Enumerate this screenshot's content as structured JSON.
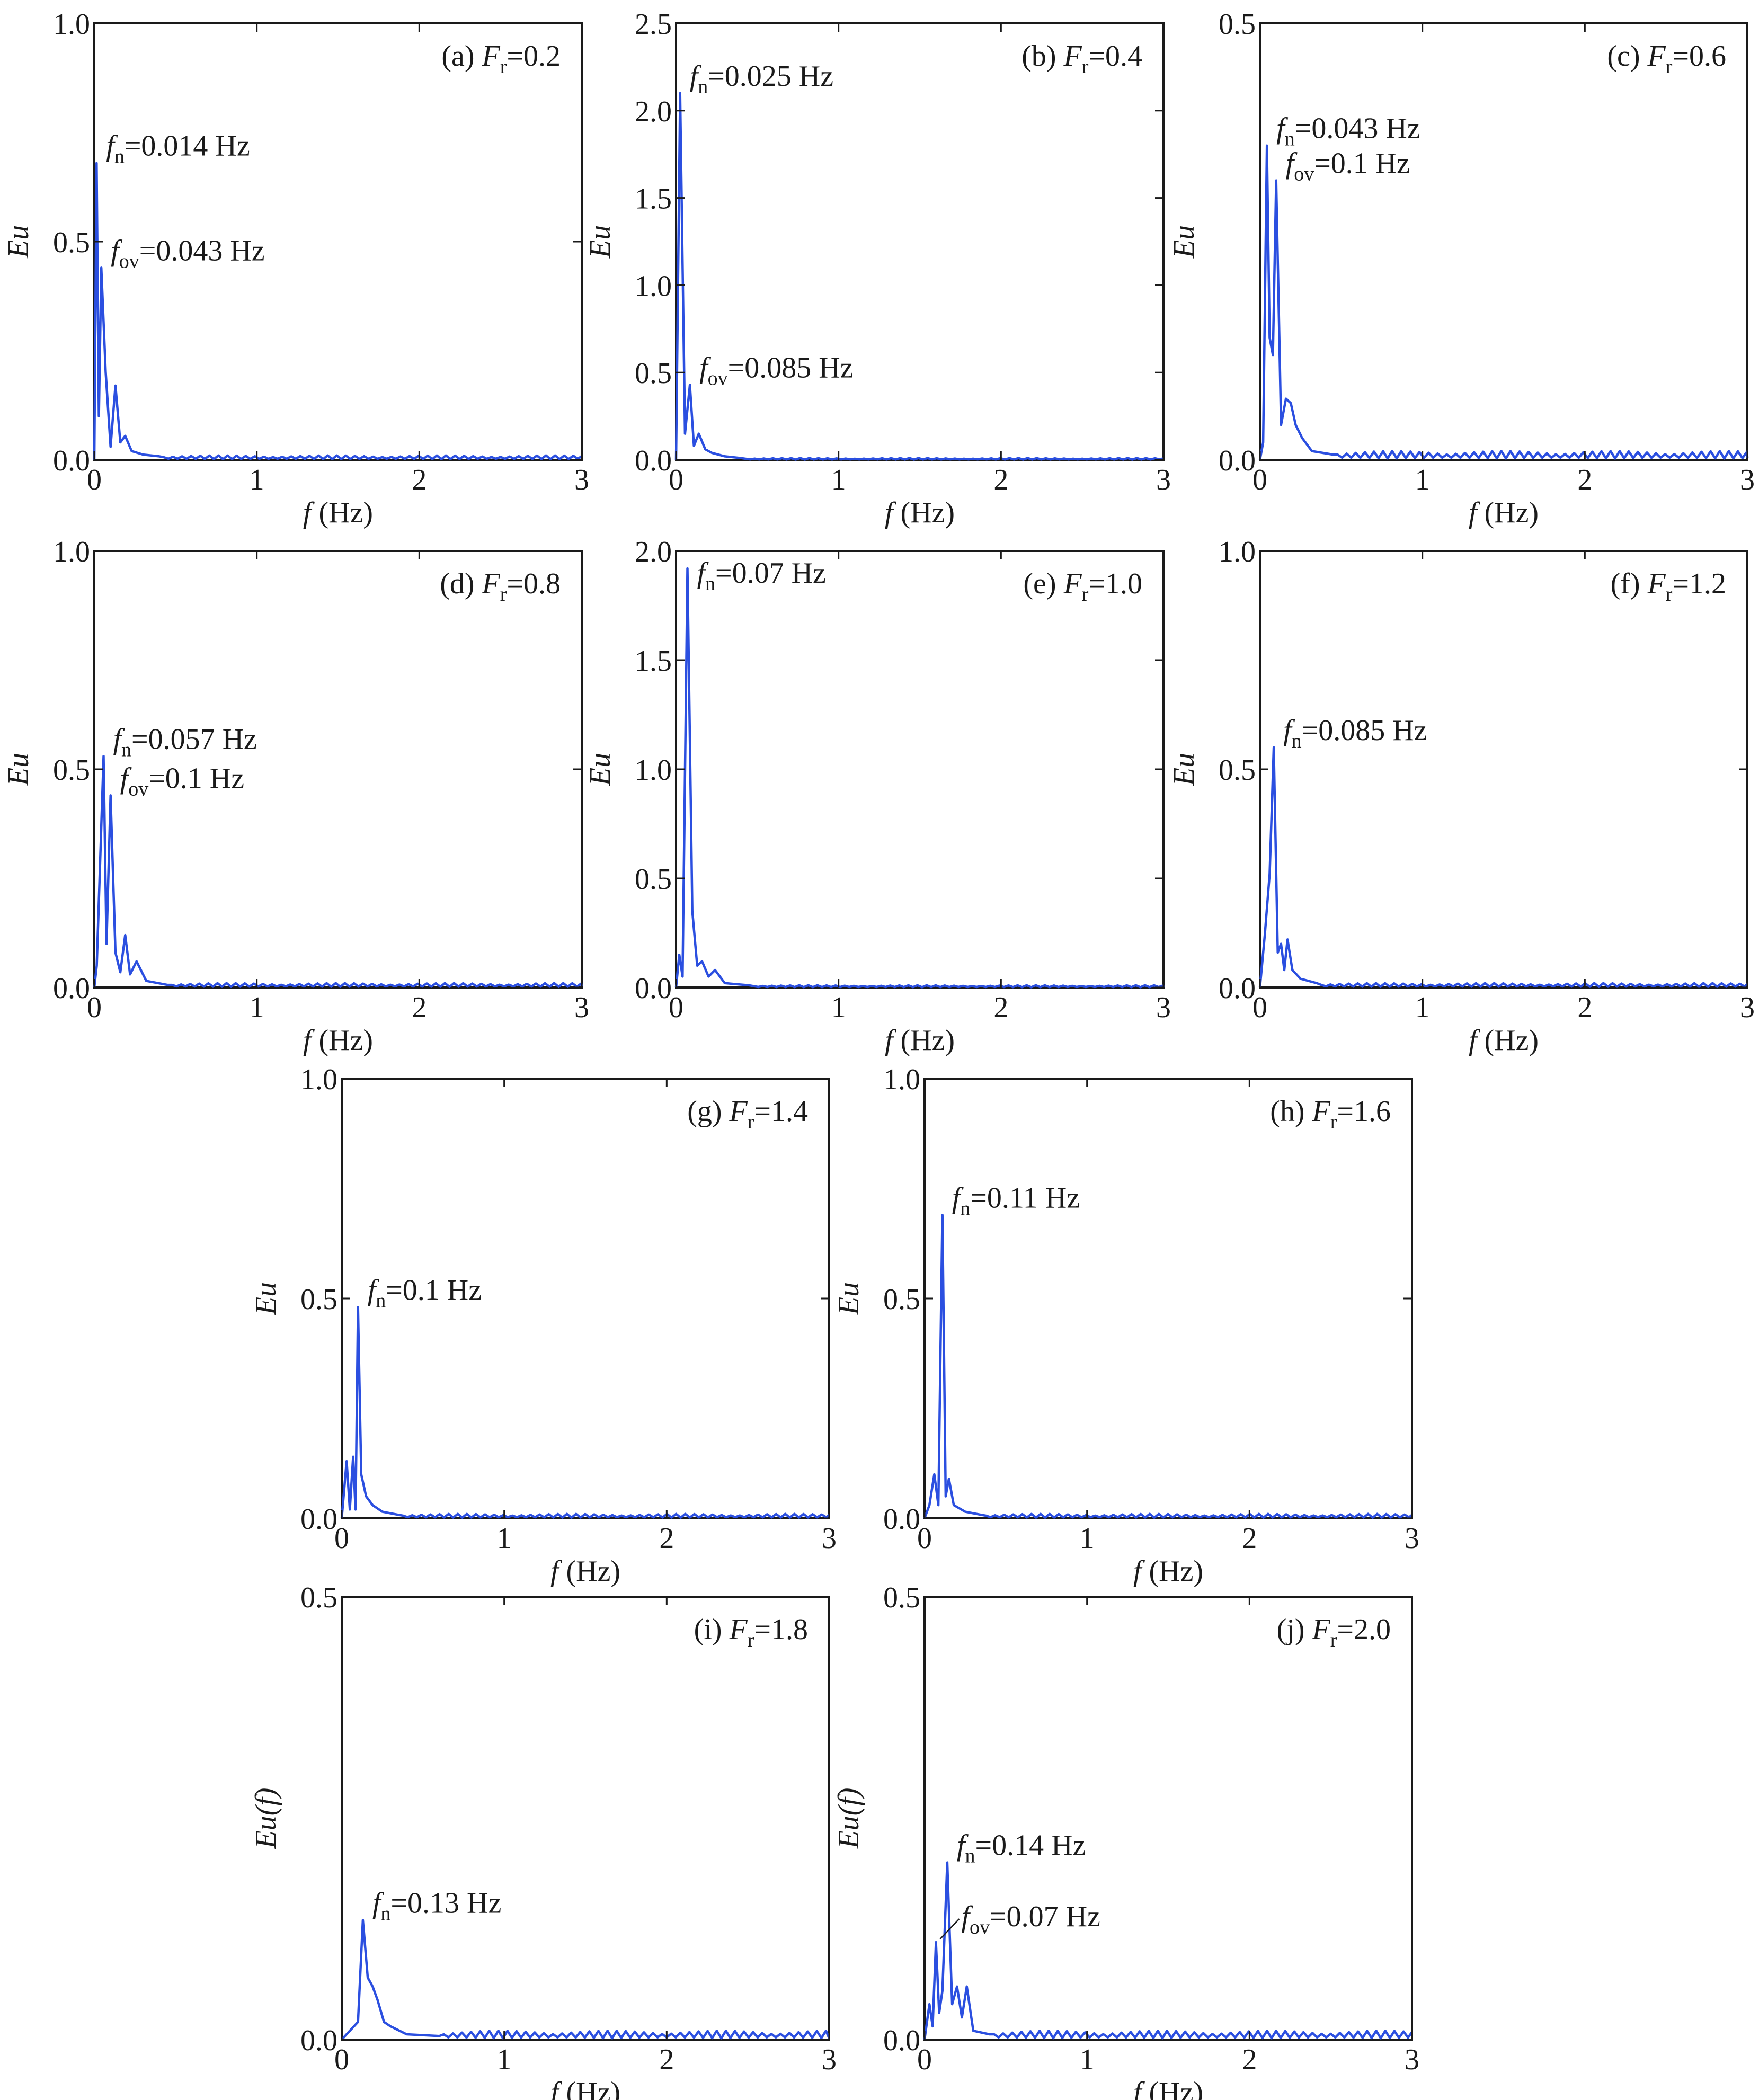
{
  "figure": {
    "colors": {
      "line": "#2b4fe0",
      "axes": "#1a1a1a"
    }
  },
  "chart_data": [
    {
      "type": "line",
      "panel_label": {
        "prefix": "(a) ",
        "var_main": "F",
        "var_sub": "r",
        "value": "=0.2"
      },
      "xlabel": {
        "var": "f",
        "unit": " (Hz)"
      },
      "ylabel": {
        "var": "Eu",
        "suffix": ""
      },
      "xlim": [
        0,
        3
      ],
      "ylim": [
        0,
        1.0
      ],
      "xticks": [
        "0",
        "1",
        "2",
        "3"
      ],
      "yticks": [
        "0.0",
        "0.5",
        "1.0"
      ],
      "grid": false,
      "peaks": [
        {
          "f": 0.014,
          "v": 0.68
        },
        {
          "f": 0.028,
          "v": 0.1
        },
        {
          "f": 0.043,
          "v": 0.44
        },
        {
          "f": 0.07,
          "v": 0.2
        },
        {
          "f": 0.1,
          "v": 0.03
        },
        {
          "f": 0.13,
          "v": 0.17
        },
        {
          "f": 0.16,
          "v": 0.04
        },
        {
          "f": 0.19,
          "v": 0.055
        },
        {
          "f": 0.23,
          "v": 0.02
        },
        {
          "f": 0.3,
          "v": 0.012
        },
        {
          "f": 0.4,
          "v": 0.008
        }
      ],
      "annotations": [
        {
          "name": "fn-annotation",
          "main": "f",
          "sub": "n",
          "text": "=0.014 Hz",
          "f": 0.014,
          "v": 0.68
        },
        {
          "name": "fov-annotation",
          "main": "f",
          "sub": "ov",
          "text": "=0.043 Hz",
          "f": 0.043,
          "v": 0.44
        }
      ]
    },
    {
      "type": "line",
      "panel_label": {
        "prefix": "(b) ",
        "var_main": "F",
        "var_sub": "r",
        "value": "=0.4"
      },
      "xlabel": {
        "var": "f",
        "unit": " (Hz)"
      },
      "ylabel": {
        "var": "Eu",
        "suffix": ""
      },
      "xlim": [
        0,
        3
      ],
      "ylim": [
        0,
        2.5
      ],
      "xticks": [
        "0",
        "1",
        "2",
        "3"
      ],
      "yticks": [
        "0.0",
        "0.5",
        "1.0",
        "1.5",
        "2.0",
        "2.5"
      ],
      "grid": false,
      "peaks": [
        {
          "f": 0.025,
          "v": 2.1
        },
        {
          "f": 0.055,
          "v": 0.15
        },
        {
          "f": 0.085,
          "v": 0.43
        },
        {
          "f": 0.11,
          "v": 0.08
        },
        {
          "f": 0.14,
          "v": 0.15
        },
        {
          "f": 0.18,
          "v": 0.06
        },
        {
          "f": 0.22,
          "v": 0.04
        },
        {
          "f": 0.3,
          "v": 0.02
        },
        {
          "f": 0.4,
          "v": 0.01
        }
      ],
      "annotations": [
        {
          "name": "fn-annotation",
          "main": "f",
          "sub": "n",
          "text": "=0.025 Hz",
          "f": 0.025,
          "v": 2.1
        },
        {
          "name": "fov-annotation",
          "main": "f",
          "sub": "ov",
          "text": "=0.085 Hz",
          "f": 0.085,
          "v": 0.43
        }
      ]
    },
    {
      "type": "line",
      "panel_label": {
        "prefix": "(c) ",
        "var_main": "F",
        "var_sub": "r",
        "value": "=0.6"
      },
      "xlabel": {
        "var": "f",
        "unit": " (Hz)"
      },
      "ylabel": {
        "var": "Eu",
        "suffix": ""
      },
      "xlim": [
        0,
        3
      ],
      "ylim": [
        0,
        0.5
      ],
      "xticks": [
        "0",
        "1",
        "2",
        "3"
      ],
      "yticks": [
        "0.0",
        "0.5"
      ],
      "grid": false,
      "peaks": [
        {
          "f": 0.02,
          "v": 0.02
        },
        {
          "f": 0.043,
          "v": 0.36
        },
        {
          "f": 0.06,
          "v": 0.14
        },
        {
          "f": 0.08,
          "v": 0.12
        },
        {
          "f": 0.1,
          "v": 0.32
        },
        {
          "f": 0.13,
          "v": 0.04
        },
        {
          "f": 0.16,
          "v": 0.07
        },
        {
          "f": 0.19,
          "v": 0.065
        },
        {
          "f": 0.22,
          "v": 0.04
        },
        {
          "f": 0.26,
          "v": 0.025
        },
        {
          "f": 0.32,
          "v": 0.01
        },
        {
          "f": 0.45,
          "v": 0.006
        }
      ],
      "annotations": [
        {
          "name": "fn-annotation",
          "main": "f",
          "sub": "n",
          "text": "=0.043 Hz",
          "f": 0.043,
          "v": 0.36
        },
        {
          "name": "fov-annotation",
          "main": "f",
          "sub": "ov",
          "text": "=0.1 Hz",
          "f": 0.1,
          "v": 0.32
        }
      ]
    },
    {
      "type": "line",
      "panel_label": {
        "prefix": "(d) ",
        "var_main": "F",
        "var_sub": "r",
        "value": "=0.8"
      },
      "xlabel": {
        "var": "f",
        "unit": " (Hz)"
      },
      "ylabel": {
        "var": "Eu",
        "suffix": ""
      },
      "xlim": [
        0,
        3
      ],
      "ylim": [
        0,
        1.0
      ],
      "xticks": [
        "0",
        "1",
        "2",
        "3"
      ],
      "yticks": [
        "0.0",
        "0.5",
        "1.0"
      ],
      "grid": false,
      "peaks": [
        {
          "f": 0.015,
          "v": 0.05
        },
        {
          "f": 0.057,
          "v": 0.53
        },
        {
          "f": 0.075,
          "v": 0.1
        },
        {
          "f": 0.1,
          "v": 0.44
        },
        {
          "f": 0.13,
          "v": 0.08
        },
        {
          "f": 0.16,
          "v": 0.035
        },
        {
          "f": 0.19,
          "v": 0.12
        },
        {
          "f": 0.22,
          "v": 0.03
        },
        {
          "f": 0.26,
          "v": 0.06
        },
        {
          "f": 0.32,
          "v": 0.015
        },
        {
          "f": 0.45,
          "v": 0.006
        }
      ],
      "annotations": [
        {
          "name": "fn-annotation",
          "main": "f",
          "sub": "n",
          "text": "=0.057 Hz",
          "f": 0.057,
          "v": 0.53
        },
        {
          "name": "fov-annotation",
          "main": "f",
          "sub": "ov",
          "text": "=0.1 Hz",
          "f": 0.1,
          "v": 0.44
        }
      ]
    },
    {
      "type": "line",
      "panel_label": {
        "prefix": "(e) ",
        "var_main": "F",
        "var_sub": "r",
        "value": "=1.0"
      },
      "xlabel": {
        "var": "f",
        "unit": " (Hz)"
      },
      "ylabel": {
        "var": "Eu",
        "suffix": ""
      },
      "xlim": [
        0,
        3
      ],
      "ylim": [
        0,
        2.0
      ],
      "xticks": [
        "0",
        "1",
        "2",
        "3"
      ],
      "yticks": [
        "0.0",
        "0.5",
        "1.0",
        "1.5",
        "2.0"
      ],
      "grid": false,
      "peaks": [
        {
          "f": 0.02,
          "v": 0.15
        },
        {
          "f": 0.04,
          "v": 0.05
        },
        {
          "f": 0.07,
          "v": 1.92
        },
        {
          "f": 0.1,
          "v": 0.35
        },
        {
          "f": 0.13,
          "v": 0.1
        },
        {
          "f": 0.16,
          "v": 0.12
        },
        {
          "f": 0.2,
          "v": 0.05
        },
        {
          "f": 0.24,
          "v": 0.08
        },
        {
          "f": 0.3,
          "v": 0.02
        },
        {
          "f": 0.45,
          "v": 0.01
        }
      ],
      "annotations": [
        {
          "name": "fn-annotation",
          "main": "f",
          "sub": "n",
          "text": "=0.07 Hz",
          "f": 0.07,
          "v": 1.92
        }
      ]
    },
    {
      "type": "line",
      "panel_label": {
        "prefix": "(f) ",
        "var_main": "F",
        "var_sub": "r",
        "value": "=1.2"
      },
      "xlabel": {
        "var": "f",
        "unit": " (Hz)"
      },
      "ylabel": {
        "var": "Eu",
        "suffix": ""
      },
      "xlim": [
        0,
        3
      ],
      "ylim": [
        0,
        1.0
      ],
      "xticks": [
        "0",
        "1",
        "2",
        "3"
      ],
      "yticks": [
        "0.0",
        "0.5",
        "1.0"
      ],
      "grid": false,
      "peaks": [
        {
          "f": 0.03,
          "v": 0.12
        },
        {
          "f": 0.06,
          "v": 0.26
        },
        {
          "f": 0.085,
          "v": 0.55
        },
        {
          "f": 0.11,
          "v": 0.08
        },
        {
          "f": 0.13,
          "v": 0.1
        },
        {
          "f": 0.15,
          "v": 0.04
        },
        {
          "f": 0.17,
          "v": 0.11
        },
        {
          "f": 0.2,
          "v": 0.04
        },
        {
          "f": 0.25,
          "v": 0.02
        },
        {
          "f": 0.35,
          "v": 0.01
        }
      ],
      "annotations": [
        {
          "name": "fn-annotation",
          "main": "f",
          "sub": "n",
          "text": "=0.085 Hz",
          "f": 0.085,
          "v": 0.55
        }
      ]
    },
    {
      "type": "line",
      "panel_label": {
        "prefix": "(g) ",
        "var_main": "F",
        "var_sub": "r",
        "value": "=1.4"
      },
      "xlabel": {
        "var": "f",
        "unit": " (Hz)"
      },
      "ylabel": {
        "var": "Eu",
        "suffix": ""
      },
      "xlim": [
        0,
        3
      ],
      "ylim": [
        0,
        1.0
      ],
      "xticks": [
        "0",
        "1",
        "2",
        "3"
      ],
      "yticks": [
        "0.0",
        "0.5",
        "1.0"
      ],
      "grid": false,
      "peaks": [
        {
          "f": 0.03,
          "v": 0.13
        },
        {
          "f": 0.05,
          "v": 0.02
        },
        {
          "f": 0.07,
          "v": 0.14
        },
        {
          "f": 0.085,
          "v": 0.02
        },
        {
          "f": 0.1,
          "v": 0.48
        },
        {
          "f": 0.12,
          "v": 0.1
        },
        {
          "f": 0.15,
          "v": 0.05
        },
        {
          "f": 0.19,
          "v": 0.03
        },
        {
          "f": 0.25,
          "v": 0.015
        },
        {
          "f": 0.35,
          "v": 0.008
        }
      ],
      "annotations": [
        {
          "name": "fn-annotation",
          "main": "f",
          "sub": "n",
          "text": "=0.1 Hz",
          "f": 0.1,
          "v": 0.48
        }
      ]
    },
    {
      "type": "line",
      "panel_label": {
        "prefix": "(h) ",
        "var_main": "F",
        "var_sub": "r",
        "value": "=1.6"
      },
      "xlabel": {
        "var": "f",
        "unit": " (Hz)"
      },
      "ylabel": {
        "var": "Eu",
        "suffix": ""
      },
      "xlim": [
        0,
        3
      ],
      "ylim": [
        0,
        1.0
      ],
      "xticks": [
        "0",
        "1",
        "2",
        "3"
      ],
      "yticks": [
        "0.0",
        "0.5",
        "1.0"
      ],
      "grid": false,
      "peaks": [
        {
          "f": 0.03,
          "v": 0.03
        },
        {
          "f": 0.06,
          "v": 0.1
        },
        {
          "f": 0.085,
          "v": 0.03
        },
        {
          "f": 0.11,
          "v": 0.69
        },
        {
          "f": 0.13,
          "v": 0.05
        },
        {
          "f": 0.15,
          "v": 0.09
        },
        {
          "f": 0.18,
          "v": 0.03
        },
        {
          "f": 0.25,
          "v": 0.015
        },
        {
          "f": 0.35,
          "v": 0.008
        }
      ],
      "annotations": [
        {
          "name": "fn-annotation",
          "main": "f",
          "sub": "n",
          "text": "=0.11 Hz",
          "f": 0.11,
          "v": 0.69
        }
      ]
    },
    {
      "type": "line",
      "panel_label": {
        "prefix": "(i) ",
        "var_main": "F",
        "var_sub": "r",
        "value": "=1.8"
      },
      "xlabel": {
        "var": "f",
        "unit": " (Hz)"
      },
      "ylabel": {
        "var": "Eu",
        "suffix": "(f)"
      },
      "xlim": [
        0,
        3
      ],
      "ylim": [
        0,
        0.5
      ],
      "xticks": [
        "0",
        "1",
        "2",
        "3"
      ],
      "yticks": [
        "0.0",
        "0.5"
      ],
      "grid": false,
      "peaks": [
        {
          "f": 0.05,
          "v": 0.01
        },
        {
          "f": 0.1,
          "v": 0.02
        },
        {
          "f": 0.13,
          "v": 0.135
        },
        {
          "f": 0.16,
          "v": 0.07
        },
        {
          "f": 0.19,
          "v": 0.06
        },
        {
          "f": 0.22,
          "v": 0.045
        },
        {
          "f": 0.26,
          "v": 0.02
        },
        {
          "f": 0.3,
          "v": 0.015
        },
        {
          "f": 0.4,
          "v": 0.006
        },
        {
          "f": 0.6,
          "v": 0.004
        }
      ],
      "annotations": [
        {
          "name": "fn-annotation",
          "main": "f",
          "sub": "n",
          "text": "=0.13 Hz",
          "f": 0.13,
          "v": 0.135
        }
      ]
    },
    {
      "type": "line",
      "panel_label": {
        "prefix": "(j) ",
        "var_main": "F",
        "var_sub": "r",
        "value": "=2.0"
      },
      "xlabel": {
        "var": "f",
        "unit": " (Hz)"
      },
      "ylabel": {
        "var": "Eu",
        "suffix": "(f)"
      },
      "xlim": [
        0,
        3
      ],
      "ylim": [
        0,
        0.5
      ],
      "xticks": [
        "0",
        "1",
        "2",
        "3"
      ],
      "yticks": [
        "0.0",
        "0.5"
      ],
      "grid": false,
      "peaks": [
        {
          "f": 0.03,
          "v": 0.04
        },
        {
          "f": 0.05,
          "v": 0.015
        },
        {
          "f": 0.07,
          "v": 0.11
        },
        {
          "f": 0.09,
          "v": 0.03
        },
        {
          "f": 0.11,
          "v": 0.055
        },
        {
          "f": 0.14,
          "v": 0.2
        },
        {
          "f": 0.17,
          "v": 0.04
        },
        {
          "f": 0.2,
          "v": 0.06
        },
        {
          "f": 0.23,
          "v": 0.025
        },
        {
          "f": 0.26,
          "v": 0.06
        },
        {
          "f": 0.3,
          "v": 0.01
        },
        {
          "f": 0.4,
          "v": 0.006
        }
      ],
      "annotations": [
        {
          "name": "fn-annotation",
          "main": "f",
          "sub": "n",
          "text": "=0.14 Hz",
          "f": 0.14,
          "v": 0.2
        },
        {
          "name": "fov-annotation",
          "main": "f",
          "sub": "ov",
          "text": "=0.07 Hz",
          "f": 0.07,
          "v": 0.11
        }
      ]
    }
  ]
}
